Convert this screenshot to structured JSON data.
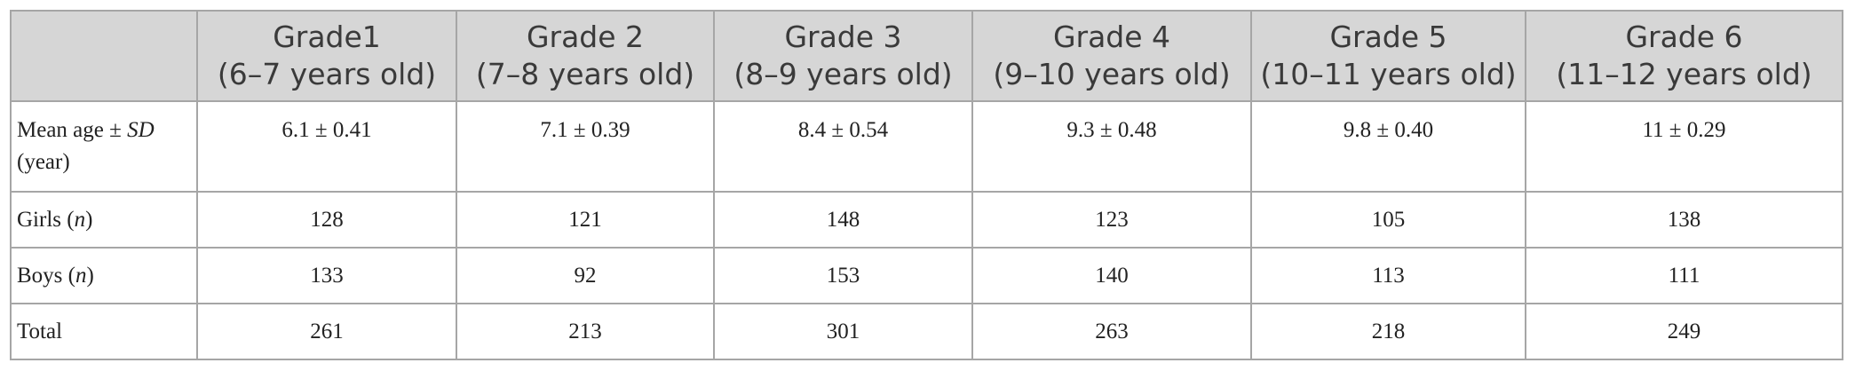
{
  "table": {
    "header": [
      {
        "grade": "Grade1",
        "age": "(6–7 years old)"
      },
      {
        "grade": "Grade 2",
        "age": "(7–8 years old)"
      },
      {
        "grade": "Grade 3",
        "age": "(8–9 years old)"
      },
      {
        "grade": "Grade 4",
        "age": "(9–10 years old)"
      },
      {
        "grade": "Grade 5",
        "age": "(10–11 years old)"
      },
      {
        "grade": "Grade 6",
        "age": "(11–12 years old)"
      }
    ],
    "rows": [
      {
        "label": [
          "Mean age ± ",
          "SD",
          " (year)"
        ],
        "cells": [
          "6.1 ± 0.41",
          "7.1 ± 0.39",
          "8.4 ± 0.54",
          "9.3 ± 0.48",
          "9.8 ± 0.40",
          "11 ± 0.29"
        ]
      },
      {
        "label": [
          "Girls (",
          "n",
          ")"
        ],
        "cells": [
          128,
          121,
          148,
          123,
          105,
          138
        ]
      },
      {
        "label": [
          "Boys (",
          "n",
          ")"
        ],
        "cells": [
          133,
          92,
          153,
          140,
          113,
          111
        ]
      },
      {
        "label": [
          "Total"
        ],
        "cells": [
          261,
          213,
          301,
          263,
          218,
          249
        ]
      }
    ]
  }
}
